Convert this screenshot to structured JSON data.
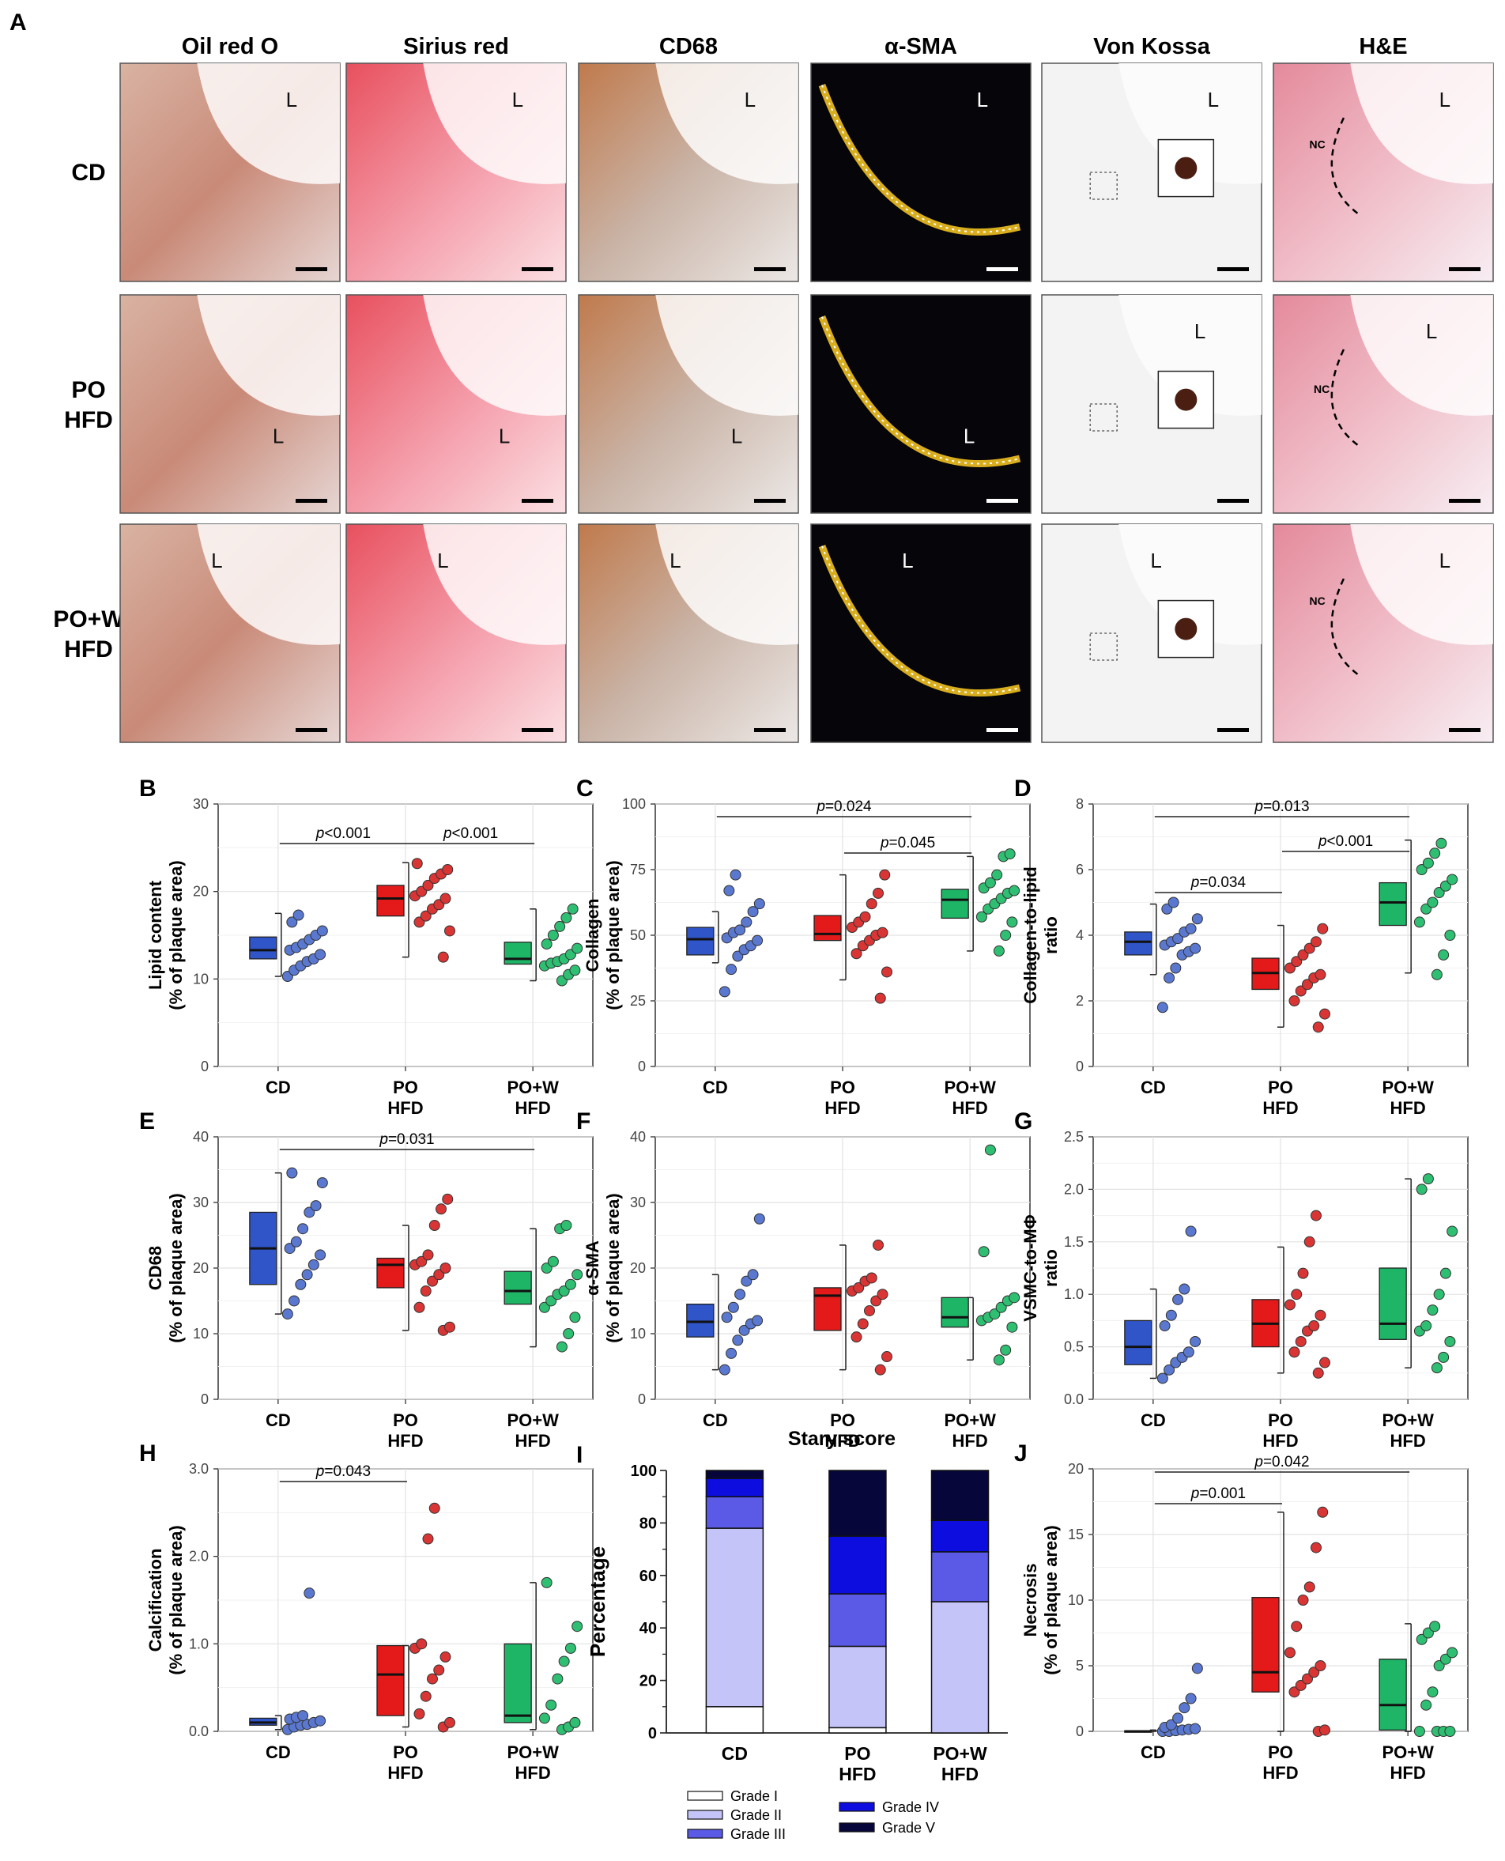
{
  "panel_letters": [
    "A",
    "B",
    "C",
    "D",
    "E",
    "F",
    "G",
    "H",
    "I",
    "J"
  ],
  "stain_titles": [
    "Oil red O",
    "Sirius red",
    "CD68",
    "α-SMA",
    "Von Kossa",
    "H&E"
  ],
  "groups": [
    {
      "line1": "CD",
      "line2": ""
    },
    {
      "line1": "PO",
      "line2": "HFD"
    },
    {
      "line1": "PO+W",
      "line2": "HFD"
    }
  ],
  "micrograph_labels": {
    "lumen": "L",
    "necrotic_core": "NC"
  },
  "colors": {
    "CD": "#2f55c8",
    "PO HFD": "#e41a1a",
    "PO+W HFD": "#1fb567",
    "CD_dot": "#5a78d0",
    "PO HFD_dot": "#d93535",
    "PO+W HFD_dot": "#2fbf72",
    "grade1": "#ffffff",
    "grade2": "#c4c4f8",
    "grade3": "#5a5ae6",
    "grade4": "#0d0de0",
    "grade5": "#06063a"
  },
  "chart_data": [
    {
      "panel": "B",
      "type": "box",
      "ylabel1": "Lipid content",
      "ylabel2": "(% of plaque area)",
      "ylim": [
        0,
        30
      ],
      "ticks": [
        "0",
        "10",
        "20",
        "30"
      ],
      "tick_values": [
        0,
        10,
        20,
        30
      ],
      "boxes": [
        {
          "group": "CD",
          "q1": 12.3,
          "median": 13.3,
          "q3": 14.8,
          "whisker_low": 10.3,
          "whisker_high": 17.5
        },
        {
          "group": "PO HFD",
          "q1": 17.2,
          "median": 19.2,
          "q3": 20.7,
          "whisker_low": 12.5,
          "whisker_high": 23.3
        },
        {
          "group": "PO+W HFD",
          "q1": 11.7,
          "median": 12.3,
          "q3": 14.2,
          "whisker_low": 9.8,
          "whisker_high": 18.0
        }
      ],
      "points": [
        [
          10.3,
          11.0,
          11.5,
          12.0,
          12.3,
          12.8,
          13.3,
          13.6,
          14.0,
          14.5,
          15.0,
          15.5,
          16.5,
          17.3
        ],
        [
          12.5,
          15.5,
          16.5,
          17.2,
          18.0,
          18.5,
          19.2,
          19.5,
          20.0,
          20.7,
          21.5,
          22.0,
          22.5,
          23.2
        ],
        [
          9.8,
          10.5,
          11.0,
          11.5,
          11.8,
          12.0,
          12.3,
          12.8,
          13.5,
          14.0,
          15.0,
          16.0,
          17.0,
          18.0
        ]
      ],
      "brackets": [
        {
          "from": 0,
          "to": 1,
          "label": "p<0.001",
          "level": 0
        },
        {
          "from": 1,
          "to": 2,
          "label": "p<0.001",
          "level": 0
        }
      ]
    },
    {
      "panel": "C",
      "type": "box",
      "ylabel1": "Collagen",
      "ylabel2": "(% of plaque area)",
      "ylim": [
        0,
        100
      ],
      "ticks": [
        "0",
        "25",
        "50",
        "75",
        "100"
      ],
      "tick_values": [
        0,
        25,
        50,
        75,
        100
      ],
      "boxes": [
        {
          "group": "CD",
          "q1": 42.5,
          "median": 48.5,
          "q3": 53.0,
          "whisker_low": 39.5,
          "whisker_high": 59.0
        },
        {
          "group": "PO HFD",
          "q1": 48.0,
          "median": 50.5,
          "q3": 57.5,
          "whisker_low": 33.0,
          "whisker_high": 73.0
        },
        {
          "group": "PO+W HFD",
          "q1": 56.5,
          "median": 63.5,
          "q3": 67.5,
          "whisker_low": 44.0,
          "whisker_high": 80.0
        }
      ],
      "points": [
        [
          28.5,
          37.0,
          42.0,
          44.5,
          46.0,
          48.0,
          49.0,
          51.0,
          52.0,
          55.0,
          59.0,
          62.0,
          67.0,
          73.0
        ],
        [
          26.0,
          36.0,
          43.0,
          46.0,
          48.0,
          50.0,
          51.0,
          53.0,
          55.0,
          57.0,
          62.0,
          66.0,
          73.0
        ],
        [
          44.0,
          50.0,
          55.0,
          57.0,
          60.0,
          62.0,
          64.0,
          66.0,
          67.0,
          68.0,
          70.0,
          73.0,
          80.0,
          81.0
        ]
      ],
      "brackets": [
        {
          "from": 1,
          "to": 2,
          "label": "p=0.045",
          "level": 0
        },
        {
          "from": 0,
          "to": 2,
          "label": "p=0.024",
          "level": 1
        }
      ]
    },
    {
      "panel": "D",
      "type": "box",
      "ylabel1": "Collagen-to-lipid",
      "ylabel2": "ratio",
      "ylim": [
        0,
        8
      ],
      "ticks": [
        "0",
        "2",
        "4",
        "6",
        "8"
      ],
      "tick_values": [
        0,
        2,
        4,
        6,
        8
      ],
      "boxes": [
        {
          "group": "CD",
          "q1": 3.4,
          "median": 3.8,
          "q3": 4.1,
          "whisker_low": 2.8,
          "whisker_high": 4.95
        },
        {
          "group": "PO HFD",
          "q1": 2.35,
          "median": 2.85,
          "q3": 3.3,
          "whisker_low": 1.2,
          "whisker_high": 4.3
        },
        {
          "group": "PO+W HFD",
          "q1": 4.3,
          "median": 5.0,
          "q3": 5.6,
          "whisker_low": 2.85,
          "whisker_high": 6.9
        }
      ],
      "points": [
        [
          1.8,
          2.7,
          3.0,
          3.4,
          3.5,
          3.6,
          3.7,
          3.8,
          3.9,
          4.1,
          4.2,
          4.5,
          4.8,
          5.0
        ],
        [
          1.2,
          1.6,
          2.0,
          2.3,
          2.5,
          2.7,
          2.8,
          3.0,
          3.2,
          3.4,
          3.6,
          3.8,
          4.2
        ],
        [
          2.8,
          3.4,
          4.0,
          4.4,
          4.8,
          5.0,
          5.3,
          5.5,
          5.7,
          6.0,
          6.2,
          6.5,
          6.8
        ]
      ],
      "brackets": [
        {
          "from": 0,
          "to": 1,
          "label": "p=0.034",
          "level": 0
        },
        {
          "from": 1,
          "to": 2,
          "label": "p<0.001",
          "level": 0
        },
        {
          "from": 0,
          "to": 2,
          "label": "p=0.013",
          "level": 1
        }
      ]
    },
    {
      "panel": "E",
      "type": "box",
      "ylabel1": "CD68",
      "ylabel2": "(% of plaque area)",
      "ylim": [
        0,
        40
      ],
      "ticks": [
        "0",
        "10",
        "20",
        "30",
        "40"
      ],
      "tick_values": [
        0,
        10,
        20,
        30,
        40
      ],
      "boxes": [
        {
          "group": "CD",
          "q1": 17.5,
          "median": 23.0,
          "q3": 28.5,
          "whisker_low": 13.0,
          "whisker_high": 34.5
        },
        {
          "group": "PO HFD",
          "q1": 17.0,
          "median": 20.5,
          "q3": 21.5,
          "whisker_low": 10.5,
          "whisker_high": 26.5
        },
        {
          "group": "PO+W HFD",
          "q1": 14.5,
          "median": 16.5,
          "q3": 19.5,
          "whisker_low": 8.0,
          "whisker_high": 26.0
        }
      ],
      "points": [
        [
          13.0,
          15.0,
          17.5,
          19.0,
          20.5,
          22.0,
          23.0,
          24.0,
          26.0,
          28.5,
          29.5,
          33.0,
          34.5
        ],
        [
          10.5,
          11.0,
          14.0,
          16.5,
          18.0,
          19.0,
          20.0,
          20.5,
          21.0,
          22.0,
          26.5,
          29.0,
          30.5
        ],
        [
          8.0,
          10.0,
          12.5,
          14.0,
          15.0,
          16.0,
          16.5,
          17.5,
          19.0,
          20.0,
          21.0,
          26.0,
          26.5
        ]
      ],
      "brackets": [
        {
          "from": 0,
          "to": 2,
          "label": "p=0.031",
          "level": 0
        }
      ]
    },
    {
      "panel": "F",
      "type": "box",
      "ylabel1": "α-SMA",
      "ylabel2": "(% of plaque area)",
      "ylim": [
        0,
        40
      ],
      "ticks": [
        "0",
        "10",
        "20",
        "30",
        "40"
      ],
      "tick_values": [
        0,
        10,
        20,
        30,
        40
      ],
      "boxes": [
        {
          "group": "CD",
          "q1": 9.5,
          "median": 11.8,
          "q3": 14.5,
          "whisker_low": 4.5,
          "whisker_high": 19.0
        },
        {
          "group": "PO HFD",
          "q1": 10.5,
          "median": 15.8,
          "q3": 17.0,
          "whisker_low": 4.5,
          "whisker_high": 23.5
        },
        {
          "group": "PO+W HFD",
          "q1": 11.0,
          "median": 12.5,
          "q3": 15.5,
          "whisker_low": 6.0,
          "whisker_high": 15.5
        }
      ],
      "points": [
        [
          4.5,
          7.0,
          9.0,
          10.5,
          11.5,
          12.0,
          12.5,
          14.0,
          16.0,
          18.0,
          19.0,
          27.5
        ],
        [
          4.5,
          6.5,
          9.5,
          11.5,
          13.5,
          15.0,
          16.0,
          16.5,
          17.0,
          18.0,
          18.5,
          23.5
        ],
        [
          6.0,
          7.5,
          11.0,
          12.0,
          12.5,
          13.0,
          14.0,
          15.0,
          15.5,
          22.5,
          38.0
        ]
      ],
      "brackets": []
    },
    {
      "panel": "G",
      "type": "box",
      "ylabel1": "VSMC-to-MΦ",
      "ylabel2": "ratio",
      "ylim": [
        0,
        2.5
      ],
      "ticks": [
        "0.0",
        "0.5",
        "1.0",
        "1.5",
        "2.0",
        "2.5"
      ],
      "tick_values": [
        0,
        0.5,
        1,
        1.5,
        2,
        2.5
      ],
      "boxes": [
        {
          "group": "CD",
          "q1": 0.33,
          "median": 0.5,
          "q3": 0.75,
          "whisker_low": 0.2,
          "whisker_high": 1.05
        },
        {
          "group": "PO HFD",
          "q1": 0.5,
          "median": 0.72,
          "q3": 0.95,
          "whisker_low": 0.25,
          "whisker_high": 1.45
        },
        {
          "group": "PO+W HFD",
          "q1": 0.57,
          "median": 0.72,
          "q3": 1.25,
          "whisker_low": 0.3,
          "whisker_high": 2.1
        }
      ],
      "points": [
        [
          0.2,
          0.28,
          0.35,
          0.4,
          0.45,
          0.55,
          0.7,
          0.8,
          0.95,
          1.05,
          1.6
        ],
        [
          0.25,
          0.35,
          0.45,
          0.55,
          0.65,
          0.7,
          0.8,
          0.9,
          1.0,
          1.2,
          1.5,
          1.75
        ],
        [
          0.3,
          0.4,
          0.55,
          0.65,
          0.7,
          0.85,
          1.0,
          1.2,
          1.6,
          2.0,
          2.1
        ]
      ],
      "brackets": []
    },
    {
      "panel": "H",
      "type": "box",
      "ylabel1": "Calcification",
      "ylabel2": "(% of plaque area)",
      "ylim": [
        0,
        3.0
      ],
      "ticks": [
        "0.0",
        "1.0",
        "2.0",
        "3.0"
      ],
      "tick_values": [
        0,
        1,
        2,
        3
      ],
      "boxes": [
        {
          "group": "CD",
          "q1": 0.07,
          "median": 0.1,
          "q3": 0.15,
          "whisker_low": 0.02,
          "whisker_high": 0.18
        },
        {
          "group": "PO HFD",
          "q1": 0.18,
          "median": 0.65,
          "q3": 0.98,
          "whisker_low": 0.05,
          "whisker_high": 0.98
        },
        {
          "group": "PO+W HFD",
          "q1": 0.1,
          "median": 0.18,
          "q3": 1.0,
          "whisker_low": 0.02,
          "whisker_high": 1.7
        }
      ],
      "points": [
        [
          0.02,
          0.05,
          0.07,
          0.08,
          0.1,
          0.12,
          0.14,
          0.16,
          0.18,
          1.58
        ],
        [
          0.05,
          0.1,
          0.2,
          0.4,
          0.6,
          0.7,
          0.85,
          0.95,
          1.0,
          2.2,
          2.55
        ],
        [
          0.02,
          0.05,
          0.1,
          0.15,
          0.3,
          0.6,
          0.8,
          0.95,
          1.2,
          1.7
        ]
      ],
      "brackets": [
        {
          "from": 0,
          "to": 1,
          "label": "p=0.043",
          "level": 0
        }
      ]
    },
    {
      "panel": "I",
      "type": "stacked_bar",
      "title": "Stary score",
      "ylabel": "Percentage",
      "ylim": [
        0,
        100
      ],
      "ticks": [
        "0",
        "20",
        "40",
        "60",
        "80",
        "100"
      ],
      "tick_values": [
        0,
        20,
        40,
        60,
        80,
        100
      ],
      "categories": [
        "CD",
        "PO HFD",
        "PO+W HFD"
      ],
      "series": [
        {
          "name": "Grade I",
          "values": [
            10,
            2,
            0
          ]
        },
        {
          "name": "Grade II",
          "values": [
            68,
            31,
            50
          ]
        },
        {
          "name": "Grade III",
          "values": [
            12,
            20,
            19
          ]
        },
        {
          "name": "Grade IV",
          "values": [
            7,
            22,
            12
          ]
        },
        {
          "name": "Grade V",
          "values": [
            3,
            25,
            19
          ]
        }
      ]
    },
    {
      "panel": "J",
      "type": "box",
      "ylabel1": "Necrosis",
      "ylabel2": "(% of plaque area)",
      "ylim": [
        0,
        20
      ],
      "ticks": [
        "0",
        "5",
        "10",
        "15",
        "20"
      ],
      "tick_values": [
        0,
        5,
        10,
        15,
        20
      ],
      "boxes": [
        {
          "group": "CD",
          "q1": 0,
          "median": 0,
          "q3": 0.05,
          "whisker_low": 0,
          "whisker_high": 0.1
        },
        {
          "group": "PO HFD",
          "q1": 3.0,
          "median": 4.5,
          "q3": 10.2,
          "whisker_low": 0,
          "whisker_high": 16.7
        },
        {
          "group": "PO+W HFD",
          "q1": 0.1,
          "median": 2.0,
          "q3": 5.5,
          "whisker_low": 0,
          "whisker_high": 8.2
        }
      ],
      "points": [
        [
          0,
          0,
          0.05,
          0.1,
          0.15,
          0.2,
          0.3,
          0.5,
          1.0,
          1.8,
          2.5,
          4.8
        ],
        [
          0,
          0.1,
          3.0,
          3.5,
          4.0,
          4.5,
          5.0,
          6.0,
          8.0,
          10.0,
          11.0,
          14.0,
          16.7
        ],
        [
          0,
          0,
          0,
          0,
          2.0,
          3.0,
          5.0,
          5.5,
          6.0,
          7.0,
          7.5,
          8.0
        ]
      ],
      "brackets": [
        {
          "from": 0,
          "to": 1,
          "label": "p=0.001",
          "level": 0
        },
        {
          "from": 0,
          "to": 2,
          "label": "p=0.042",
          "level": 1
        }
      ]
    }
  ]
}
